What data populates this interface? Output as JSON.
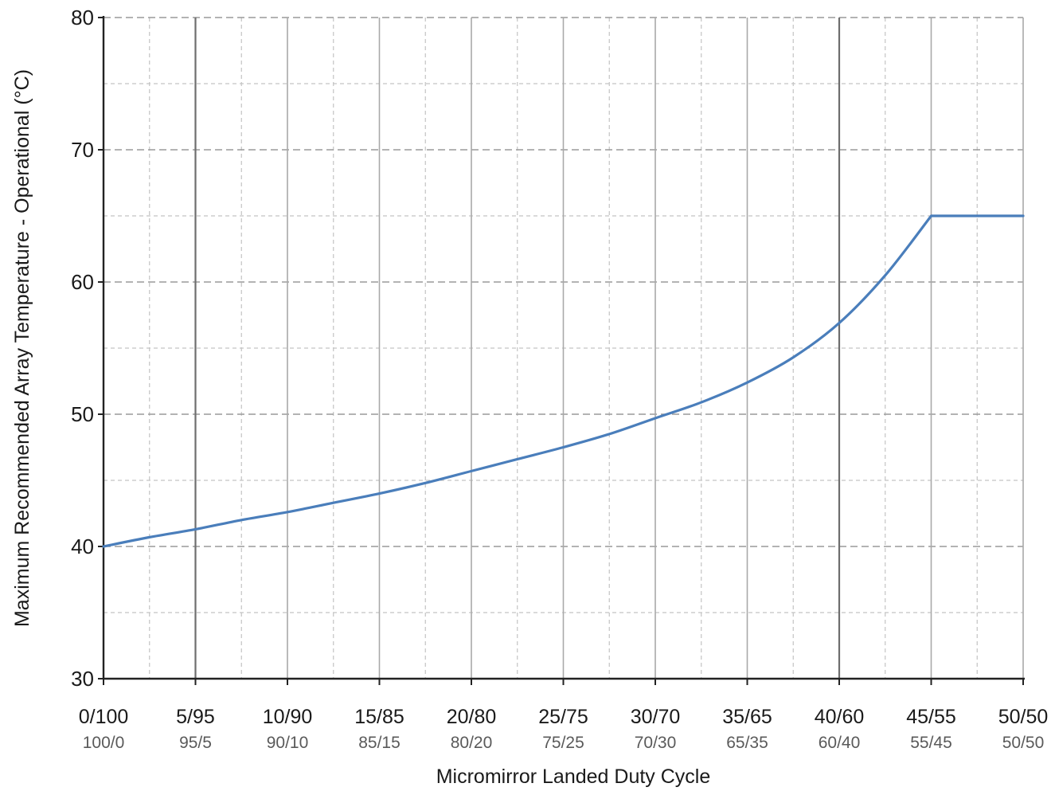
{
  "chart_data": {
    "type": "line",
    "xlabel": "Micromirror Landed Duty Cycle",
    "ylabel": "Maximum Recommended Array Temperature - Operational (°C)",
    "ylim": [
      30,
      80
    ],
    "xlim": [
      0,
      50
    ],
    "y_ticks": [
      "30",
      "40",
      "50",
      "60",
      "70",
      "80"
    ],
    "x_ticks_primary": [
      "0/100",
      "5/95",
      "10/90",
      "15/85",
      "20/80",
      "25/75",
      "30/70",
      "35/65",
      "40/60",
      "45/55",
      "50/50"
    ],
    "x_ticks_secondary": [
      "100/0",
      "95/5",
      "90/10",
      "85/15",
      "80/20",
      "75/25",
      "70/30",
      "65/35",
      "60/40",
      "55/45",
      "50/50"
    ],
    "grid": true,
    "line_color": "#4a7ebb",
    "series": [
      {
        "x": [
          0,
          2.5,
          5,
          7.5,
          10,
          12.5,
          15,
          17.5,
          20,
          22.5,
          25,
          27.5,
          30,
          32.5,
          35,
          37.5,
          40,
          42.5,
          45,
          47.5,
          50
        ],
        "y": [
          40,
          40.7,
          41.3,
          42.0,
          42.6,
          43.3,
          44.0,
          44.8,
          45.7,
          46.6,
          47.5,
          48.5,
          49.7,
          50.9,
          52.4,
          54.3,
          56.9,
          60.5,
          65,
          65,
          65
        ]
      }
    ]
  }
}
